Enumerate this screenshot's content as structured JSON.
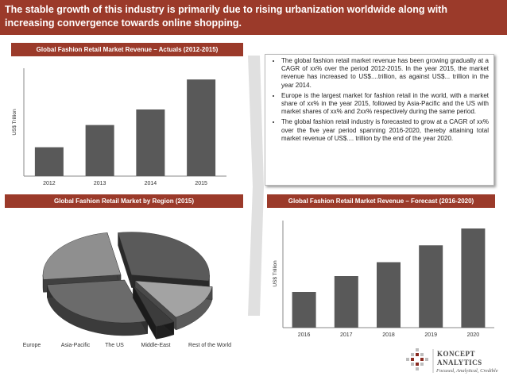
{
  "header": {
    "title": "The stable growth of this industry is primarily due to rising urbanization worldwide along with increasing convergence towards online shopping."
  },
  "actuals_panel": {
    "title": "Global Fashion Retail Market Revenue – Actuals (2012-2015)"
  },
  "region_panel": {
    "title": "Global Fashion Retail Market by Region (2015)"
  },
  "forecast_panel": {
    "title": "Global Fashion Retail Market Revenue – Forecast (2016-2020)"
  },
  "bullets": [
    "The global fashion retail market revenue has been growing gradually at a CAGR of xx% over the period 2012-2015. In the year 2015, the market revenue has increased to US$....trillion, as against US$... trillion in the year 2014.",
    "Europe is the largest market for fashion retail in the world, with a market share of xx% in the year 2015, followed by Asia-Pacific and the US with market shares of xx% and 2xx% respectively during the same period.",
    "The global fashion retail industry is forecasted to grow at a CAGR of xx% over the five year period spanning 2016-2020, thereby attaining total market revenue of US$.... trillion by the end of the year 2020."
  ],
  "logo": {
    "name_line1": "KONCEPT",
    "name_line2": "ANALYTICS",
    "tagline": "Focused, Analytical, Credible"
  },
  "colors": {
    "header_bg": "#9b3a2a",
    "bar": "#595959",
    "pie": [
      "#5a5a5a",
      "#a3a3a3",
      "#3c3c3c",
      "#6b6b6b",
      "#8f8f8f"
    ]
  },
  "chart_data": [
    {
      "type": "bar",
      "title": "Global Fashion Retail Market Revenue – Actuals (2012-2015)",
      "categories": [
        "2012",
        "2013",
        "2014",
        "2015"
      ],
      "values": [
        0.26,
        0.46,
        0.6,
        0.87
      ],
      "ylabel": "US$ Trillion",
      "ylim": [
        0,
        1
      ],
      "grid": false
    },
    {
      "type": "pie",
      "title": "Global Fashion Retail Market by Region (2015)",
      "categories": [
        "Europe",
        "Asia-Pacific",
        "The US",
        "Middle-East",
        "Rest of the World"
      ],
      "values": [
        30,
        14,
        4,
        28,
        24
      ],
      "legend": "bottom",
      "style": "3d-exploded"
    },
    {
      "type": "bar",
      "title": "Global Fashion Retail Market Revenue – Forecast (2016-2020)",
      "categories": [
        "2016",
        "2017",
        "2018",
        "2019",
        "2020"
      ],
      "values": [
        0.36,
        0.52,
        0.66,
        0.83,
        1.0
      ],
      "ylabel": "US$ Trillion",
      "ylim": [
        0,
        1.2
      ],
      "grid": false
    }
  ]
}
